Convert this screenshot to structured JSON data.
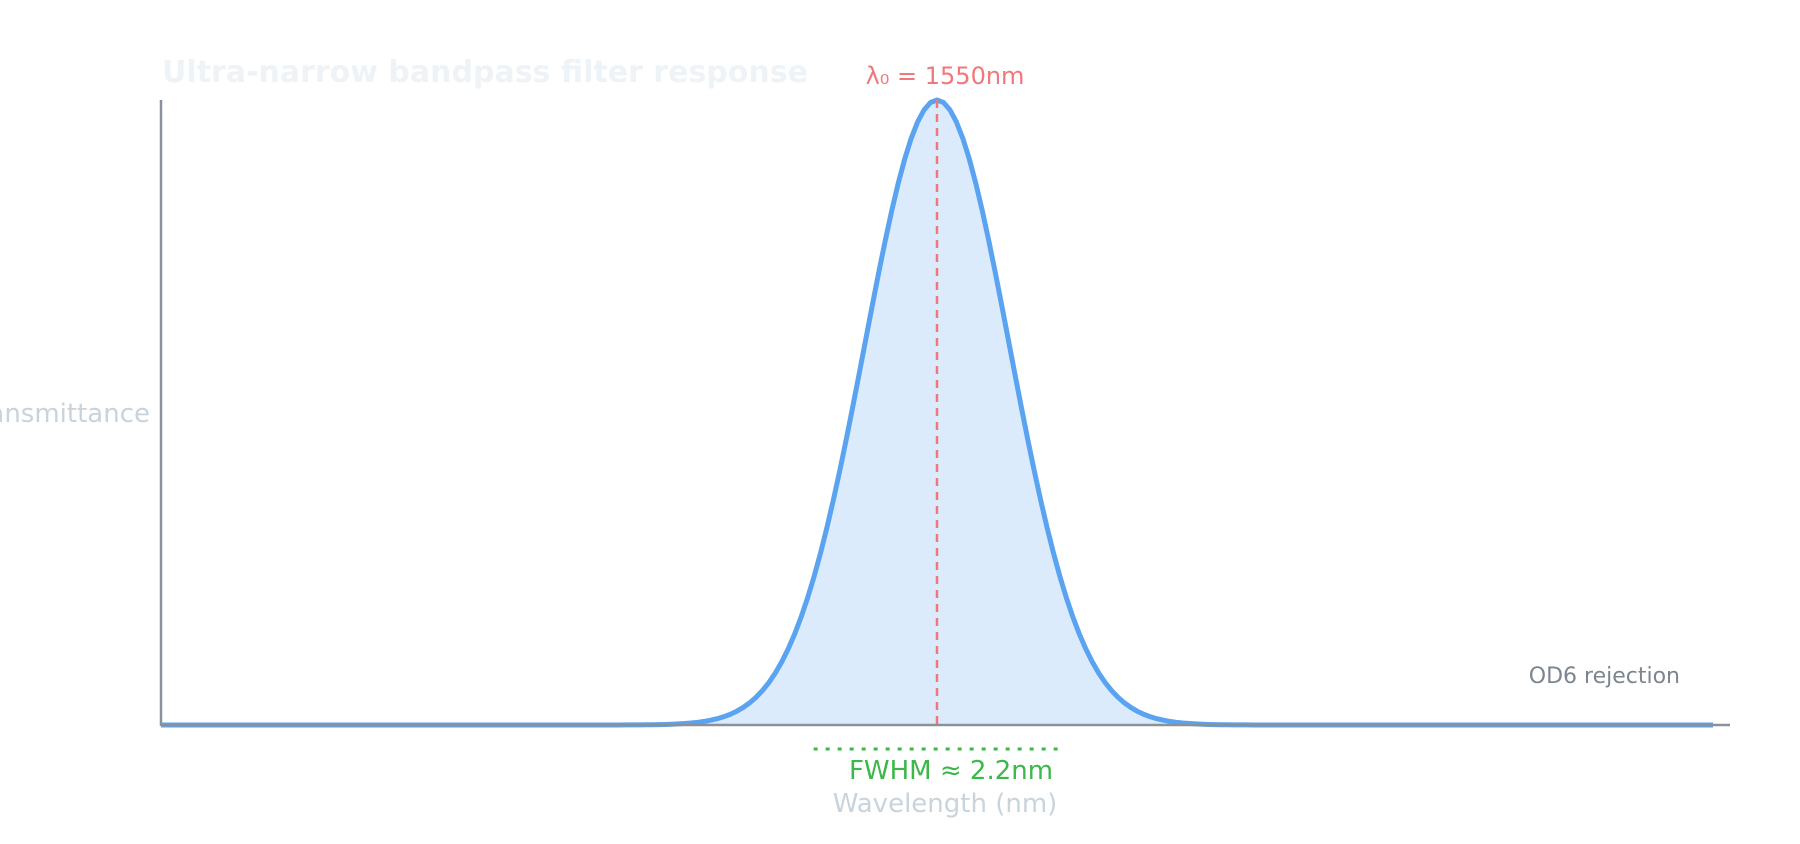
{
  "chart_data": {
    "type": "line",
    "title": "Ultra-narrow bandpass filter response",
    "xlabel": "Wavelength (nm)",
    "ylabel": "Transmittance",
    "center_wavelength_nm": 1550,
    "fwhm_nm": 2.2,
    "x_range_nm": [
      1540,
      1560
    ],
    "y_range": [
      0,
      1
    ],
    "grid": false,
    "legend": "none",
    "annotations": {
      "center_label": "λ₀ = 1550nm",
      "fwhm_label": "FWHM ≈ 2.2nm",
      "rejection_label": "OD6 rejection"
    },
    "series": [
      {
        "color": "#5aa3f0",
        "fill": "#dcebfc",
        "x": [
          1540,
          1541,
          1542,
          1543,
          1544,
          1545,
          1546,
          1547,
          1548,
          1548.5,
          1549,
          1549.5,
          1550,
          1550.5,
          1551,
          1551.5,
          1552,
          1553,
          1554,
          1555,
          1556,
          1557,
          1558,
          1559,
          1560
        ],
        "values": [
          0,
          0,
          0,
          0,
          0,
          0,
          0,
          0.001,
          0.06,
          0.2,
          0.49,
          0.86,
          1.0,
          0.86,
          0.49,
          0.2,
          0.06,
          0.001,
          0,
          0,
          0,
          0,
          0,
          0,
          0
        ]
      }
    ],
    "colors": {
      "axis": "#8a919a",
      "center_marker": "#f2777a",
      "fwhm_marker": "#3cb84a",
      "muted_text": "#c9d3dc",
      "title_text": "#eef3f7",
      "rejection_text": "#7d8590"
    }
  }
}
